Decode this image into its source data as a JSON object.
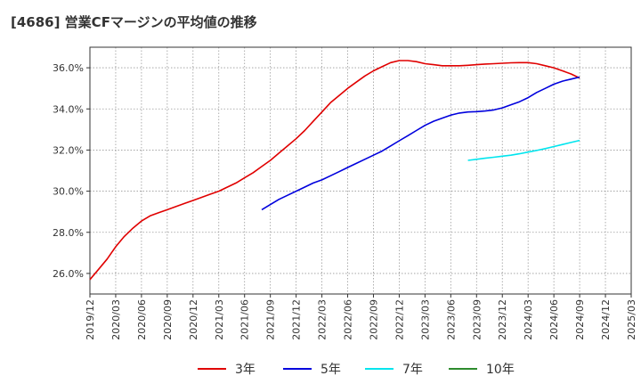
{
  "title": "[4686]  営業CFマージンの平均値の推移",
  "chart_data": {
    "type": "line",
    "title": "[4686]  営業CFマージンの平均値の推移",
    "ylim": [
      25.0,
      37.0
    ],
    "y_ticks": [
      "26.0%",
      "28.0%",
      "30.0%",
      "32.0%",
      "34.0%",
      "36.0%"
    ],
    "y_tick_values": [
      26,
      28,
      30,
      32,
      34,
      36
    ],
    "x_ticks": [
      "2019/12",
      "2020/03",
      "2020/06",
      "2020/09",
      "2020/12",
      "2021/03",
      "2021/06",
      "2021/09",
      "2021/12",
      "2022/03",
      "2022/06",
      "2022/09",
      "2022/12",
      "2023/03",
      "2023/06",
      "2023/09",
      "2023/12",
      "2024/03",
      "2024/06",
      "2024/09",
      "2024/12",
      "2025/03"
    ],
    "grid": true,
    "legend_position": "bottom",
    "series": [
      {
        "name": "3年",
        "color": "#e00000",
        "x": [
          "2019/12",
          "2020/01",
          "2020/02",
          "2020/03",
          "2020/04",
          "2020/05",
          "2020/06",
          "2020/07",
          "2020/08",
          "2020/09",
          "2020/10",
          "2020/11",
          "2020/12",
          "2021/01",
          "2021/02",
          "2021/03",
          "2021/04",
          "2021/05",
          "2021/06",
          "2021/07",
          "2021/08",
          "2021/09",
          "2021/10",
          "2021/11",
          "2021/12",
          "2022/01",
          "2022/02",
          "2022/03",
          "2022/04",
          "2022/05",
          "2022/06",
          "2022/07",
          "2022/08",
          "2022/09",
          "2022/10",
          "2022/11",
          "2022/12",
          "2023/01",
          "2023/02",
          "2023/03",
          "2023/04",
          "2023/05",
          "2023/06",
          "2023/07",
          "2023/08",
          "2023/09",
          "2023/10",
          "2023/11",
          "2023/12",
          "2024/01",
          "2024/02",
          "2024/03",
          "2024/04",
          "2024/05",
          "2024/06",
          "2024/07",
          "2024/08",
          "2024/09"
        ],
        "values": [
          25.7,
          26.2,
          26.7,
          27.3,
          27.8,
          28.2,
          28.55,
          28.8,
          28.95,
          29.1,
          29.25,
          29.4,
          29.55,
          29.7,
          29.85,
          30.0,
          30.2,
          30.4,
          30.65,
          30.9,
          31.2,
          31.5,
          31.85,
          32.2,
          32.55,
          32.95,
          33.4,
          33.85,
          34.3,
          34.65,
          35.0,
          35.3,
          35.6,
          35.85,
          36.05,
          36.25,
          36.35,
          36.35,
          36.3,
          36.2,
          36.15,
          36.1,
          36.1,
          36.1,
          36.12,
          36.15,
          36.18,
          36.2,
          36.22,
          36.24,
          36.25,
          36.25,
          36.2,
          36.1,
          36.0,
          35.85,
          35.7,
          35.5
        ]
      },
      {
        "name": "5年",
        "color": "#0000dd",
        "x": [
          "2021/08",
          "2021/09",
          "2021/10",
          "2021/11",
          "2021/12",
          "2022/01",
          "2022/02",
          "2022/03",
          "2022/04",
          "2022/05",
          "2022/06",
          "2022/07",
          "2022/08",
          "2022/09",
          "2022/10",
          "2022/11",
          "2022/12",
          "2023/01",
          "2023/02",
          "2023/03",
          "2023/04",
          "2023/05",
          "2023/06",
          "2023/07",
          "2023/08",
          "2023/09",
          "2023/10",
          "2023/11",
          "2023/12",
          "2024/01",
          "2024/02",
          "2024/03",
          "2024/04",
          "2024/05",
          "2024/06",
          "2024/07",
          "2024/08",
          "2024/09"
        ],
        "values": [
          29.1,
          29.35,
          29.6,
          29.8,
          30.0,
          30.2,
          30.4,
          30.55,
          30.75,
          30.95,
          31.15,
          31.35,
          31.55,
          31.75,
          31.95,
          32.2,
          32.45,
          32.7,
          32.95,
          33.2,
          33.4,
          33.55,
          33.7,
          33.8,
          33.85,
          33.87,
          33.9,
          33.95,
          34.05,
          34.2,
          34.35,
          34.55,
          34.8,
          35.0,
          35.2,
          35.35,
          35.45,
          35.55
        ]
      },
      {
        "name": "7年",
        "color": "#00e5ee",
        "x": [
          "2023/08",
          "2023/09",
          "2023/10",
          "2023/11",
          "2023/12",
          "2024/01",
          "2024/02",
          "2024/03",
          "2024/04",
          "2024/05",
          "2024/06",
          "2024/07",
          "2024/08",
          "2024/09"
        ],
        "values": [
          31.5,
          31.55,
          31.6,
          31.65,
          31.7,
          31.75,
          31.82,
          31.9,
          31.98,
          32.07,
          32.17,
          32.27,
          32.37,
          32.47
        ]
      },
      {
        "name": "10年",
        "color": "#2e8b2e",
        "x": [],
        "values": []
      }
    ]
  }
}
